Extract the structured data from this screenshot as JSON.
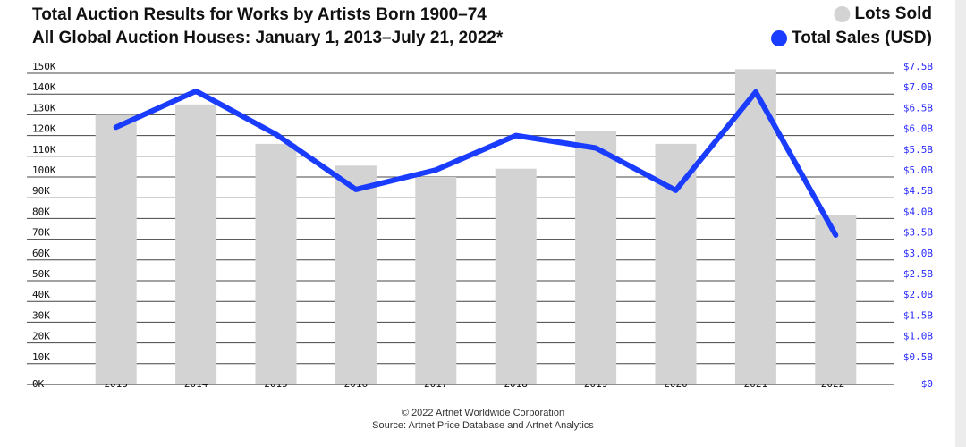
{
  "chart_data": {
    "type": "bar",
    "title": "Total Auction Results for Works by Artists Born 1900–74",
    "subtitle": "All Global Auction Houses: January 1, 2013–July 21, 2022*",
    "categories": [
      "2013",
      "2014",
      "2015",
      "2016",
      "2017",
      "2018",
      "2019",
      "2020",
      "2021",
      "2022*"
    ],
    "series": [
      {
        "name": "Lots Sold",
        "color": "#d3d3d3",
        "type": "bar",
        "values": [
          130000,
          135000,
          116000,
          105500,
          100000,
          104000,
          122000,
          116000,
          152000,
          81500
        ]
      },
      {
        "name": "Total Sales (USD)",
        "color": "#1a3cff",
        "type": "line",
        "axis": "y2",
        "values": [
          6200000000,
          7070000000,
          6030000000,
          4700000000,
          5170000000,
          6000000000,
          5700000000,
          4680000000,
          7050000000,
          3600000000
        ]
      }
    ],
    "ylim": [
      0,
      150000
    ],
    "yticks": [
      {
        "value": 0,
        "label": "0K"
      },
      {
        "value": 10000,
        "label": "10K"
      },
      {
        "value": 20000,
        "label": "20K"
      },
      {
        "value": 30000,
        "label": "30K"
      },
      {
        "value": 40000,
        "label": "40K"
      },
      {
        "value": 50000,
        "label": "50K"
      },
      {
        "value": 60000,
        "label": "60K"
      },
      {
        "value": 70000,
        "label": "70K"
      },
      {
        "value": 80000,
        "label": "80K"
      },
      {
        "value": 90000,
        "label": "90K"
      },
      {
        "value": 100000,
        "label": "100K"
      },
      {
        "value": 110000,
        "label": "110K"
      },
      {
        "value": 120000,
        "label": "120K"
      },
      {
        "value": 130000,
        "label": "130K"
      },
      {
        "value": 140000,
        "label": "140K"
      },
      {
        "value": 150000,
        "label": "150K"
      }
    ],
    "y2lim": [
      0,
      7500000000
    ],
    "y2ticks": [
      {
        "value": 0,
        "label": "$0"
      },
      {
        "value": 500000000,
        "label": "$0.5B"
      },
      {
        "value": 1000000000,
        "label": "$1.0B"
      },
      {
        "value": 1500000000,
        "label": "$1.5B"
      },
      {
        "value": 2000000000,
        "label": "$2.0B"
      },
      {
        "value": 2500000000,
        "label": "$2.5B"
      },
      {
        "value": 3000000000,
        "label": "$3.0B"
      },
      {
        "value": 3500000000,
        "label": "$3.5B"
      },
      {
        "value": 4000000000,
        "label": "$4.0B"
      },
      {
        "value": 4500000000,
        "label": "$4.5B"
      },
      {
        "value": 5000000000,
        "label": "$5.0B"
      },
      {
        "value": 5500000000,
        "label": "$5.5B"
      },
      {
        "value": 6000000000,
        "label": "$6.0B"
      },
      {
        "value": 6500000000,
        "label": "$6.5B"
      },
      {
        "value": 7000000000,
        "label": "$7.0B"
      },
      {
        "value": 7500000000,
        "label": "$7.5B"
      }
    ],
    "grid": true,
    "legend": "top-right",
    "copyright": "© 2022 Artnet Worldwide Corporation",
    "source": "Source: Artnet Price Database and Artnet Analytics"
  }
}
